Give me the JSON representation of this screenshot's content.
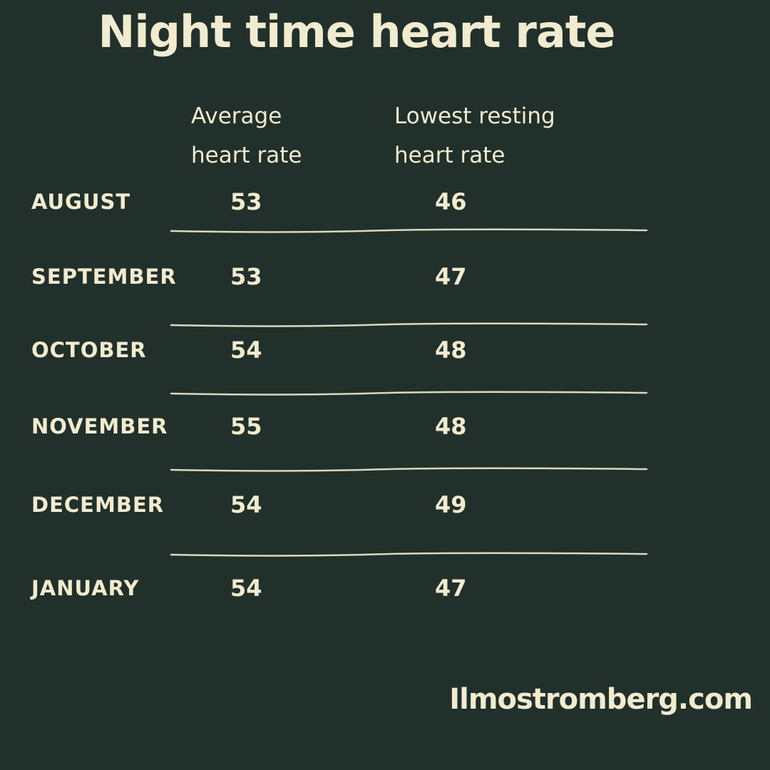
{
  "title": "Night time heart rate",
  "table": {
    "header": [
      "Average heart rate",
      "Lowest resting heart rate"
    ],
    "rows": [
      [
        "AUGUST",
        53,
        46
      ],
      [
        "SEPTEMBER",
        53,
        47
      ],
      [
        "OCTOBER",
        54,
        48
      ],
      [
        "NOVEMBER",
        55,
        48
      ],
      [
        "DECEMBER",
        54,
        49
      ],
      [
        "JANUARY",
        54,
        47
      ]
    ]
  },
  "footer": "Ilmostromberg.com"
}
